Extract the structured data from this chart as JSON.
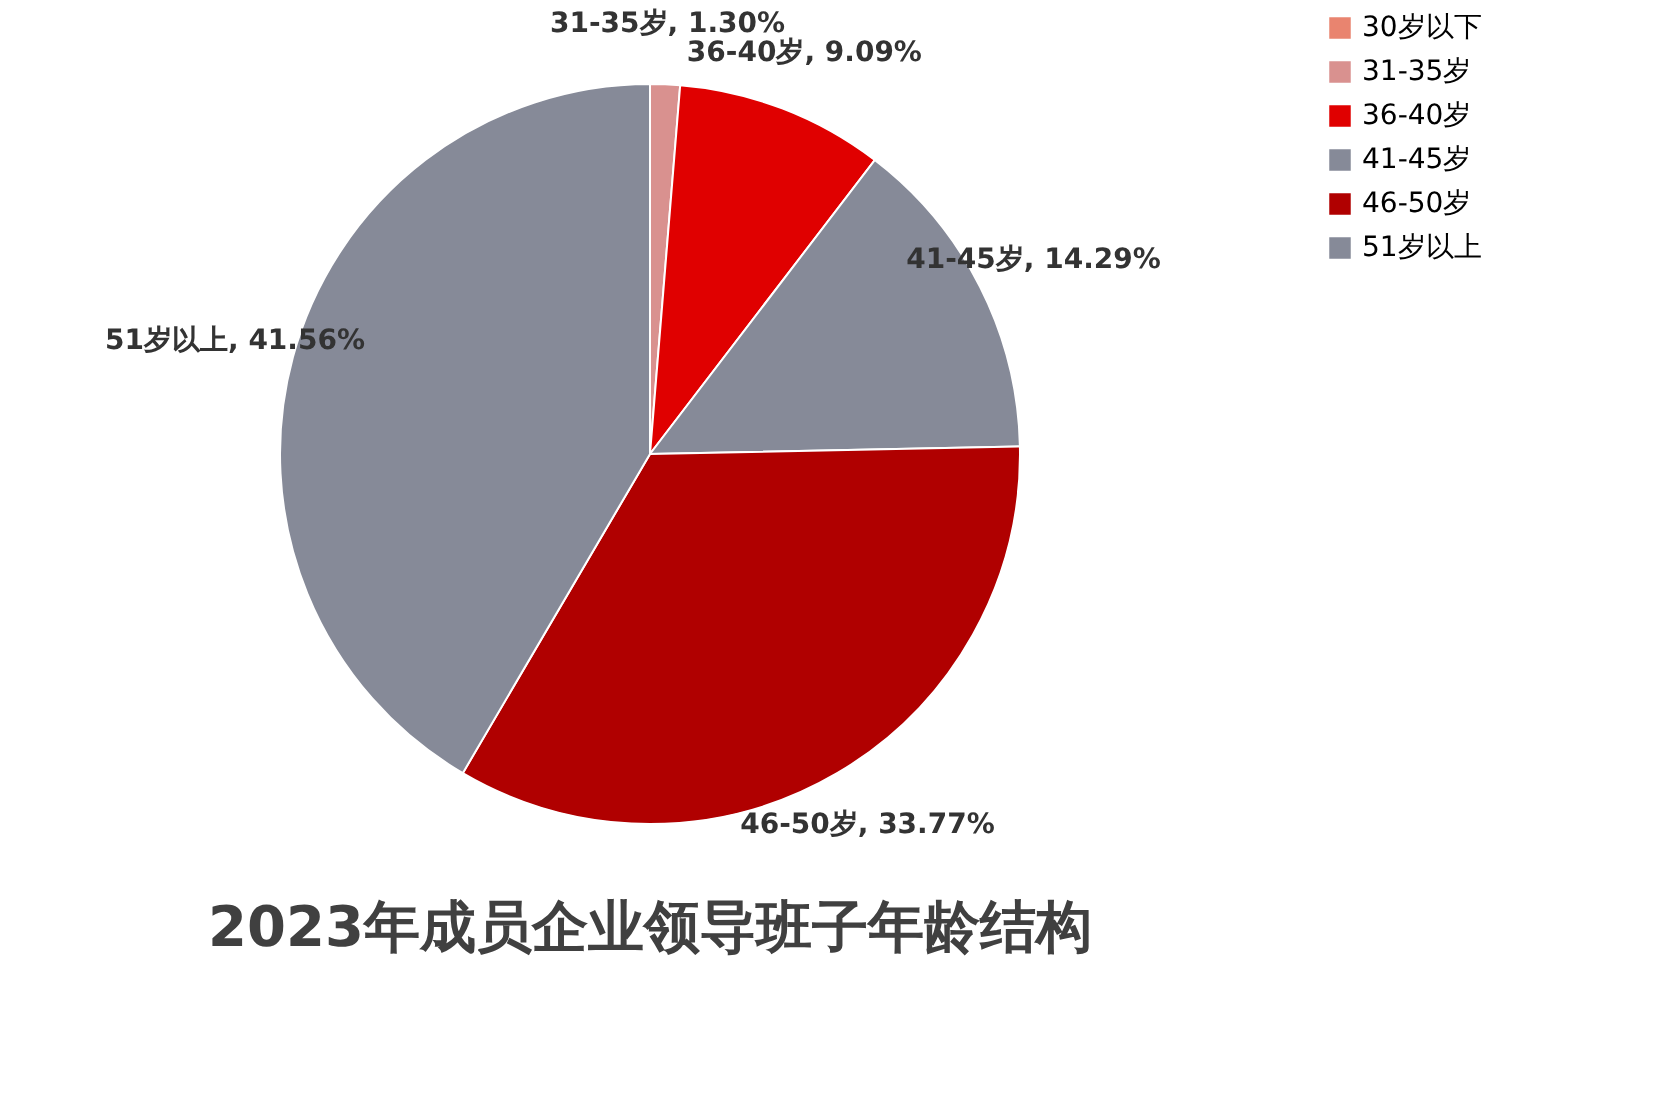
{
  "chart_data": {
    "type": "pie",
    "title": "2023年成员企业领导班子年龄结构",
    "categories": [
      "30岁以下",
      "31-35岁",
      "36-40岁",
      "41-45岁",
      "46-50岁",
      "51岁以上"
    ],
    "values": [
      0,
      1.3,
      9.09,
      14.29,
      33.77,
      41.56
    ],
    "colors": [
      "#e9846f",
      "#d9918f",
      "#e00000",
      "#868a98",
      "#b00000",
      "#868a98"
    ],
    "value_labels": [
      null,
      "31-35岁, 1.30%",
      "36-40岁, 9.09%",
      "41-45岁, 14.29%",
      "46-50岁, 33.77%",
      "51岁以上, 41.56%"
    ],
    "legend": "right"
  }
}
